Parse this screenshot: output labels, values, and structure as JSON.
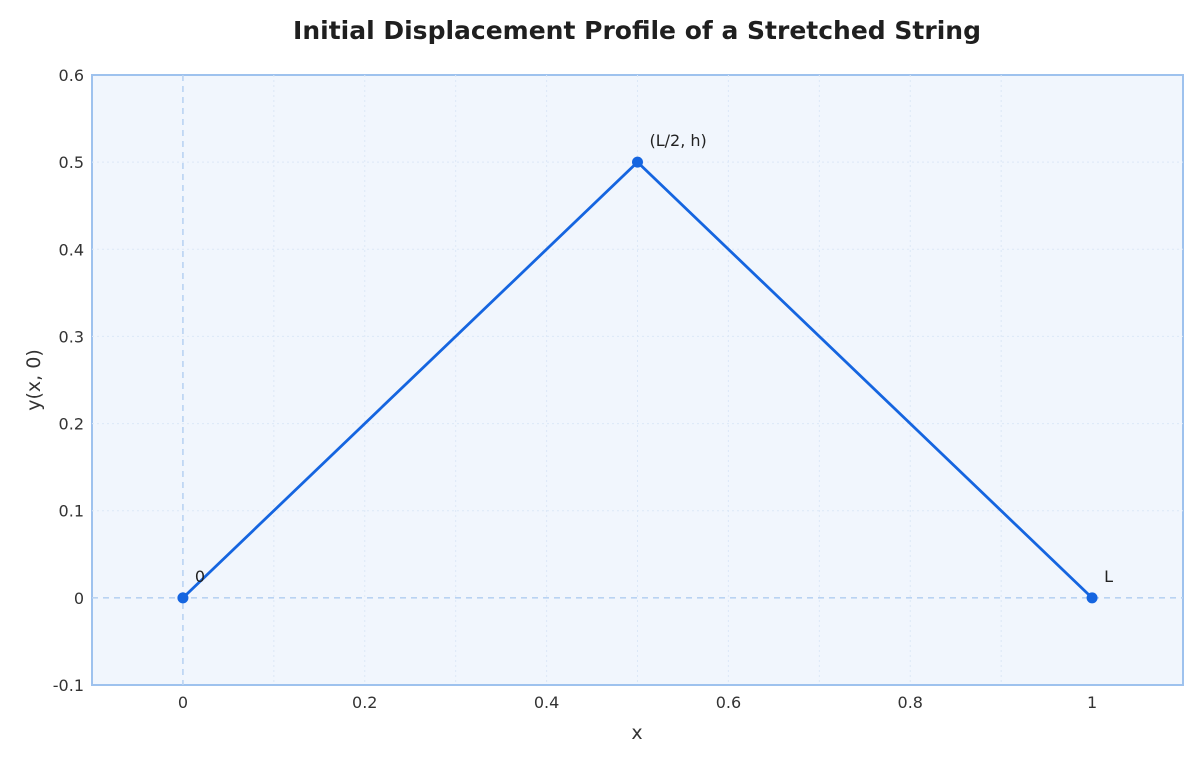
{
  "chart_data": {
    "type": "line",
    "title": "Initial Displacement Profile of a Stretched String",
    "xlabel": "x",
    "ylabel": "y(x, 0)",
    "xlim": [
      -0.1,
      1.1
    ],
    "ylim": [
      -0.1,
      0.6
    ],
    "xticks": [
      0,
      0.2,
      0.4,
      0.6,
      0.8,
      1
    ],
    "xtick_labels": [
      "0",
      "0.2",
      "0.4",
      "0.6",
      "0.8",
      "1"
    ],
    "yticks": [
      -0.1,
      0,
      0.1,
      0.2,
      0.3,
      0.4,
      0.5,
      0.6
    ],
    "ytick_labels": [
      "-0.1",
      "0",
      "0.1",
      "0.2",
      "0.3",
      "0.4",
      "0.5",
      "0.6"
    ],
    "grid": true,
    "reference_lines": {
      "x": 0,
      "y": 0
    },
    "series": [
      {
        "x": [
          0,
          0.5,
          1
        ],
        "y": [
          0,
          0.5,
          0
        ],
        "color": "#1565e0"
      }
    ],
    "annotations": [
      {
        "text": "0",
        "x": 0,
        "y": 0
      },
      {
        "text": "(L/2, h)",
        "x": 0.5,
        "y": 0.5
      },
      {
        "text": "L",
        "x": 1,
        "y": 0
      }
    ],
    "colors": {
      "line": "#1565e0",
      "plot_background": "#f1f6fd",
      "plot_border": "#9ec2ee",
      "reference_line": "#b9d3f2",
      "grid": "#dce8f7"
    }
  }
}
